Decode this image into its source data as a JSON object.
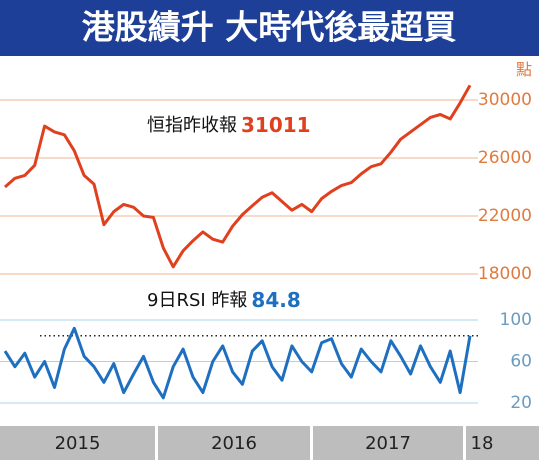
{
  "title": "港股績升 大時代後最超買",
  "x_axis": {
    "labels": [
      "2015",
      "2016",
      "2017",
      "18"
    ]
  },
  "chart_data": [
    {
      "type": "line",
      "color": "#e0401e",
      "unit_label": "點",
      "annotation": {
        "label": "恒指昨收報",
        "value": 31011
      },
      "values": [
        24000,
        24600,
        24800,
        25500,
        28200,
        27800,
        27600,
        26500,
        24800,
        24200,
        21400,
        22300,
        22800,
        22600,
        22000,
        21900,
        19800,
        18500,
        19600,
        20300,
        20900,
        20400,
        20200,
        21300,
        22100,
        22700,
        23300,
        23600,
        23000,
        22400,
        22800,
        22300,
        23200,
        23700,
        24100,
        24300,
        24900,
        25400,
        25600,
        26400,
        27300,
        27800,
        28300,
        28800,
        29000,
        28700,
        29800,
        31011
      ],
      "ylim": [
        17000,
        31500
      ],
      "yticks": [
        18000,
        22000,
        26000,
        30000
      ],
      "grid": true
    },
    {
      "type": "line",
      "color": "#1f6fc0",
      "annotation": {
        "label": "9日RSI 昨報",
        "value": 84.8
      },
      "values": [
        70,
        55,
        68,
        45,
        60,
        35,
        72,
        92,
        65,
        55,
        40,
        58,
        30,
        48,
        65,
        40,
        25,
        55,
        72,
        45,
        30,
        60,
        75,
        50,
        38,
        70,
        80,
        55,
        42,
        75,
        60,
        50,
        78,
        82,
        58,
        45,
        72,
        60,
        50,
        80,
        65,
        48,
        75,
        55,
        40,
        70,
        30,
        84.8
      ],
      "ylim": [
        10,
        108
      ],
      "yticks": [
        20,
        60,
        100
      ],
      "grid": true
    }
  ]
}
